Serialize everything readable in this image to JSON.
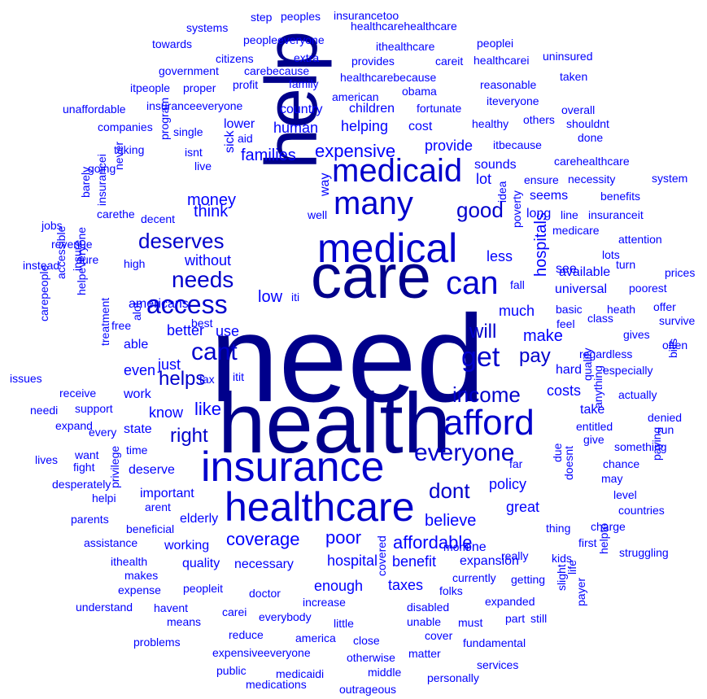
{
  "cloud": {
    "colors": {
      "large": "#00008B",
      "medium": "#0000CD",
      "small": "#0000FF"
    },
    "words": [
      {
        "text": "need",
        "weight": 100
      },
      {
        "text": "health",
        "weight": 90
      },
      {
        "text": "care",
        "weight": 70
      },
      {
        "text": "help",
        "weight": 70
      },
      {
        "text": "insurance",
        "weight": 60
      },
      {
        "text": "medical",
        "weight": 55
      },
      {
        "text": "healthcare",
        "weight": 50
      },
      {
        "text": "afford",
        "weight": 50
      },
      {
        "text": "medicaid",
        "weight": 42
      },
      {
        "text": "many",
        "weight": 42
      },
      {
        "text": "can",
        "weight": 40
      },
      {
        "text": "get",
        "weight": 34
      },
      {
        "text": "access",
        "weight": 33
      },
      {
        "text": "everyone",
        "weight": 32
      },
      {
        "text": "needs",
        "weight": 30
      },
      {
        "text": "cant",
        "weight": 30
      },
      {
        "text": "deserves",
        "weight": 28
      },
      {
        "text": "income",
        "weight": 28
      },
      {
        "text": "helps",
        "weight": 26
      },
      {
        "text": "dont",
        "weight": 26
      },
      {
        "text": "right",
        "weight": 25
      },
      {
        "text": "good",
        "weight": 25
      },
      {
        "text": "expensive",
        "weight": 25
      },
      {
        "text": "pay",
        "weight": 24
      },
      {
        "text": "like",
        "weight": 24
      },
      {
        "text": "affordable",
        "weight": 23
      },
      {
        "text": "will",
        "weight": 22
      },
      {
        "text": "coverage",
        "weight": 22
      },
      {
        "text": "poor",
        "weight": 22
      },
      {
        "text": "believe",
        "weight": 21
      },
      {
        "text": "low",
        "weight": 20
      },
      {
        "text": "money",
        "weight": 20
      },
      {
        "text": "families",
        "weight": 20
      },
      {
        "text": "think",
        "weight": 20
      },
      {
        "text": "hospitals",
        "weight": 19
      },
      {
        "text": "make",
        "weight": 19
      },
      {
        "text": "hospital",
        "weight": 18
      },
      {
        "text": "policy",
        "weight": 18
      },
      {
        "text": "costs",
        "weight": 18
      },
      {
        "text": "less",
        "weight": 17
      },
      {
        "text": "much",
        "weight": 17
      },
      {
        "text": "helping",
        "weight": 17
      },
      {
        "text": "human",
        "weight": 17
      },
      {
        "text": "provide",
        "weight": 17
      },
      {
        "text": "better",
        "weight": 17
      },
      {
        "text": "without",
        "weight": 16
      },
      {
        "text": "know",
        "weight": 16
      },
      {
        "text": "americans",
        "weight": 16
      },
      {
        "text": "great",
        "weight": 16
      },
      {
        "text": "enough",
        "weight": 16
      },
      {
        "text": "benefit",
        "weight": 16
      },
      {
        "text": "taxes",
        "weight": 16
      },
      {
        "text": "important",
        "weight": 15
      },
      {
        "text": "lot",
        "weight": 15
      },
      {
        "text": "use",
        "weight": 15
      },
      {
        "text": "cost",
        "weight": 15
      },
      {
        "text": "country",
        "weight": 15
      },
      {
        "text": "sick",
        "weight": 15
      },
      {
        "text": "way",
        "weight": 15
      },
      {
        "text": "just",
        "weight": 15
      },
      {
        "text": "even",
        "weight": 15
      },
      {
        "text": "necessary",
        "weight": 15
      },
      {
        "text": "expansion",
        "weight": 15
      },
      {
        "text": "one",
        "weight": 15
      },
      {
        "text": "sounds",
        "weight": 14
      },
      {
        "text": "seems",
        "weight": 14
      },
      {
        "text": "long",
        "weight": 14
      },
      {
        "text": "see",
        "weight": 14
      },
      {
        "text": "available",
        "weight": 14
      },
      {
        "text": "universal",
        "weight": 14
      },
      {
        "text": "able",
        "weight": 14
      },
      {
        "text": "deserve",
        "weight": 14
      },
      {
        "text": "lower",
        "weight": 14
      },
      {
        "text": "children",
        "weight": 14
      },
      {
        "text": "work",
        "weight": 14
      },
      {
        "text": "hard",
        "weight": 14
      },
      {
        "text": "take",
        "weight": 14
      },
      {
        "text": "state",
        "weight": 14
      },
      {
        "text": "quality",
        "weight": 14
      },
      {
        "text": "working",
        "weight": 14
      },
      {
        "text": "elderly",
        "weight": 14
      },
      {
        "text": "free",
        "weight": 13
      },
      {
        "text": "high",
        "weight": 13
      },
      {
        "text": "decent",
        "weight": 13
      },
      {
        "text": "poverty",
        "weight": 13
      },
      {
        "text": "doesnt",
        "weight": 13
      },
      {
        "text": "tax",
        "weight": 13
      },
      {
        "text": "time",
        "weight": 13
      },
      {
        "text": "medicare",
        "weight": 13
      },
      {
        "text": "basic",
        "weight": 13
      },
      {
        "text": "far",
        "weight": 13
      },
      {
        "text": "fall",
        "weight": 13
      },
      {
        "text": "feel",
        "weight": 13
      },
      {
        "text": "really",
        "weight": 13
      },
      {
        "text": "kids",
        "weight": 13
      },
      {
        "text": "thing",
        "weight": 13
      },
      {
        "text": "currently",
        "weight": 13
      },
      {
        "text": "folks",
        "weight": 13
      },
      {
        "text": "doctor",
        "weight": 13
      },
      {
        "text": "getting",
        "weight": 13
      },
      {
        "text": "expanded",
        "weight": 13
      },
      {
        "text": "increase",
        "weight": 13
      },
      {
        "text": "disabled",
        "weight": 13
      },
      {
        "text": "must",
        "weight": 13
      },
      {
        "text": "unable",
        "weight": 13
      },
      {
        "text": "little",
        "weight": 13
      },
      {
        "text": "america",
        "weight": 13
      },
      {
        "text": "cover",
        "weight": 13
      },
      {
        "text": "fundamental",
        "weight": 13
      },
      {
        "text": "services",
        "weight": 13
      },
      {
        "text": "matter",
        "weight": 13
      },
      {
        "text": "otherwise",
        "weight": 13
      },
      {
        "text": "middle",
        "weight": 13
      },
      {
        "text": "personally",
        "weight": 13
      },
      {
        "text": "outrageous",
        "weight": 13
      },
      {
        "text": "medications",
        "weight": 13
      },
      {
        "text": "medicaidi",
        "weight": 13
      },
      {
        "text": "public",
        "weight": 13
      },
      {
        "text": "expensiveeveryone",
        "weight": 13
      },
      {
        "text": "reduce",
        "weight": 13
      },
      {
        "text": "problems",
        "weight": 13
      },
      {
        "text": "means",
        "weight": 13
      },
      {
        "text": "understand",
        "weight": 13
      },
      {
        "text": "havent",
        "weight": 13
      },
      {
        "text": "expense",
        "weight": 13
      },
      {
        "text": "peopleit",
        "weight": 13
      },
      {
        "text": "makes",
        "weight": 13
      },
      {
        "text": "carei",
        "weight": 13
      },
      {
        "text": "everybody",
        "weight": 13
      },
      {
        "text": "close",
        "weight": 13
      },
      {
        "text": "part",
        "weight": 13
      },
      {
        "text": "still",
        "weight": 13
      },
      {
        "text": "covered",
        "weight": 13
      },
      {
        "text": "ithealth",
        "weight": 13
      },
      {
        "text": "assistance",
        "weight": 13
      },
      {
        "text": "beneficial",
        "weight": 13
      },
      {
        "text": "parents",
        "weight": 13
      },
      {
        "text": "arent",
        "weight": 13
      },
      {
        "text": "privilege",
        "weight": 13
      },
      {
        "text": "helpi",
        "weight": 13
      },
      {
        "text": "desperately",
        "weight": 13
      },
      {
        "text": "fight",
        "weight": 13
      },
      {
        "text": "lives",
        "weight": 13
      },
      {
        "text": "want",
        "weight": 13
      },
      {
        "text": "every",
        "weight": 13
      },
      {
        "text": "expand",
        "weight": 13
      },
      {
        "text": "needi",
        "weight": 13
      },
      {
        "text": "support",
        "weight": 13
      },
      {
        "text": "receive",
        "weight": 13
      },
      {
        "text": "issues",
        "weight": 13
      },
      {
        "text": "carepeople",
        "weight": 13
      },
      {
        "text": "helpeveryone",
        "weight": 13
      },
      {
        "text": "treatment",
        "weight": 13
      },
      {
        "text": "accessible",
        "weight": 13
      },
      {
        "text": "insure",
        "weight": 13
      },
      {
        "text": "instead",
        "weight": 13
      },
      {
        "text": "revenue",
        "weight": 13
      },
      {
        "text": "sure",
        "weight": 13
      },
      {
        "text": "jobs",
        "weight": 13
      },
      {
        "text": "insurancei",
        "weight": 13
      },
      {
        "text": "carethe",
        "weight": 13
      },
      {
        "text": "barely",
        "weight": 13
      },
      {
        "text": "never",
        "weight": 13
      },
      {
        "text": "going",
        "weight": 13
      },
      {
        "text": "taking",
        "weight": 13
      },
      {
        "text": "isnt",
        "weight": 13
      },
      {
        "text": "live",
        "weight": 13
      },
      {
        "text": "program",
        "weight": 13
      },
      {
        "text": "alot",
        "weight": 13
      },
      {
        "text": "best",
        "weight": 13
      },
      {
        "text": "itit",
        "weight": 13
      },
      {
        "text": "iti",
        "weight": 13
      },
      {
        "text": "well",
        "weight": 13
      },
      {
        "text": "idea",
        "weight": 13
      },
      {
        "text": "aid",
        "weight": 13
      },
      {
        "text": "single",
        "weight": 13
      },
      {
        "text": "companies",
        "weight": 13
      },
      {
        "text": "unaffordable",
        "weight": 13
      },
      {
        "text": "insuranceeveryone",
        "weight": 13
      },
      {
        "text": "itpeople",
        "weight": 13
      },
      {
        "text": "proper",
        "weight": 13
      },
      {
        "text": "profit",
        "weight": 13
      },
      {
        "text": "government",
        "weight": 13
      },
      {
        "text": "carebecause",
        "weight": 13
      },
      {
        "text": "family",
        "weight": 13
      },
      {
        "text": "citizens",
        "weight": 13
      },
      {
        "text": "extra",
        "weight": 13
      },
      {
        "text": "towards",
        "weight": 13
      },
      {
        "text": "systems",
        "weight": 13
      },
      {
        "text": "peopleeveryone",
        "weight": 13
      },
      {
        "text": "step",
        "weight": 13
      },
      {
        "text": "peoples",
        "weight": 13
      },
      {
        "text": "insurancetoo",
        "weight": 13
      },
      {
        "text": "healthcarehealthcare",
        "weight": 13
      },
      {
        "text": "ithealthcare",
        "weight": 13
      },
      {
        "text": "peoplei",
        "weight": 13
      },
      {
        "text": "provides",
        "weight": 13
      },
      {
        "text": "careit",
        "weight": 13
      },
      {
        "text": "healthcarei",
        "weight": 13
      },
      {
        "text": "uninsured",
        "weight": 13
      },
      {
        "text": "healthcarebecause",
        "weight": 13
      },
      {
        "text": "taken",
        "weight": 13
      },
      {
        "text": "american",
        "weight": 13
      },
      {
        "text": "reasonable",
        "weight": 13
      },
      {
        "text": "obama",
        "weight": 13
      },
      {
        "text": "fortunate",
        "weight": 13
      },
      {
        "text": "iteveryone",
        "weight": 13
      },
      {
        "text": "overall",
        "weight": 13
      },
      {
        "text": "healthy",
        "weight": 13
      },
      {
        "text": "others",
        "weight": 13
      },
      {
        "text": "shouldnt",
        "weight": 13
      },
      {
        "text": "done",
        "weight": 13
      },
      {
        "text": "itbecause",
        "weight": 13
      },
      {
        "text": "carehealthcare",
        "weight": 13
      },
      {
        "text": "ensure",
        "weight": 13
      },
      {
        "text": "necessity",
        "weight": 13
      },
      {
        "text": "system",
        "weight": 13
      },
      {
        "text": "benefits",
        "weight": 13
      },
      {
        "text": "line",
        "weight": 13
      },
      {
        "text": "insuranceit",
        "weight": 13
      },
      {
        "text": "attention",
        "weight": 13
      },
      {
        "text": "lots",
        "weight": 13
      },
      {
        "text": "turn",
        "weight": 13
      },
      {
        "text": "prices",
        "weight": 13
      },
      {
        "text": "poorest",
        "weight": 13
      },
      {
        "text": "heath",
        "weight": 13
      },
      {
        "text": "offer",
        "weight": 13
      },
      {
        "text": "survive",
        "weight": 13
      },
      {
        "text": "class",
        "weight": 13
      },
      {
        "text": "gives",
        "weight": 13
      },
      {
        "text": "often",
        "weight": 13
      },
      {
        "text": "regardless",
        "weight": 13
      },
      {
        "text": "especially",
        "weight": 13
      },
      {
        "text": "bills",
        "weight": 13
      },
      {
        "text": "actually",
        "weight": 13
      },
      {
        "text": "qualify",
        "weight": 13
      },
      {
        "text": "anything",
        "weight": 13
      },
      {
        "text": "entitled",
        "weight": 13
      },
      {
        "text": "denied",
        "weight": 13
      },
      {
        "text": "run",
        "weight": 13
      },
      {
        "text": "give",
        "weight": 13
      },
      {
        "text": "something",
        "weight": 13
      },
      {
        "text": "due",
        "weight": 13
      },
      {
        "text": "chance",
        "weight": 13
      },
      {
        "text": "may",
        "weight": 13
      },
      {
        "text": "paying",
        "weight": 13
      },
      {
        "text": "level",
        "weight": 13
      },
      {
        "text": "countries",
        "weight": 13
      },
      {
        "text": "charge",
        "weight": 13
      },
      {
        "text": "mom",
        "weight": 13
      },
      {
        "text": "first",
        "weight": 13
      },
      {
        "text": "struggling",
        "weight": 13
      },
      {
        "text": "helpto",
        "weight": 13
      },
      {
        "text": "life",
        "weight": 13
      },
      {
        "text": "slight",
        "weight": 13
      },
      {
        "text": "payer",
        "weight": 13
      }
    ]
  }
}
